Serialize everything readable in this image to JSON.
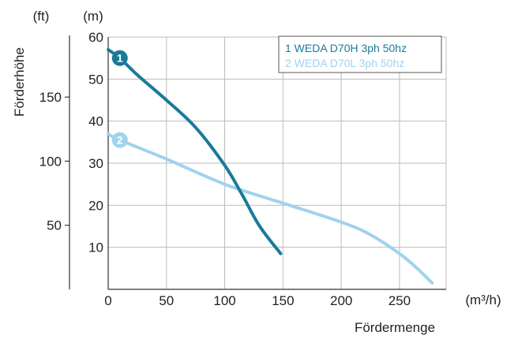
{
  "chart_data": {
    "type": "line",
    "title": "",
    "xlabel": "Fördermenge",
    "x_unit": "(m³/h)",
    "ylabel": "Förderhöhe",
    "y_unit_left": "(ft)",
    "y_unit_right": "(m)",
    "xlim": [
      0,
      290
    ],
    "ylim": [
      0,
      60
    ],
    "x_ticks": [
      "0",
      "50",
      "100",
      "150",
      "200",
      "250"
    ],
    "x_tick_values": [
      0,
      50,
      100,
      150,
      200,
      250
    ],
    "y_ticks": [
      "10",
      "20",
      "30",
      "40",
      "50",
      "60"
    ],
    "y_tick_values": [
      10,
      20,
      30,
      40,
      50,
      60
    ],
    "ft_ticks": [
      "50",
      "100",
      "150"
    ],
    "ft_tick_values": [
      50,
      100,
      150
    ],
    "grid": true,
    "legend_position": "top-right",
    "series": [
      {
        "name": "1 WEDA D70H 3ph 50hz",
        "marker_label": "1",
        "color": "#1a7a9a",
        "x": [
          0,
          10,
          25,
          50,
          75,
          100,
          115,
          130,
          148
        ],
        "y": [
          57,
          55,
          51,
          45,
          38.5,
          29.5,
          22.5,
          15,
          8.5
        ]
      },
      {
        "name": "2 WEDA D70L 3ph 50hz",
        "marker_label": "2",
        "color": "#9fd3ee",
        "x": [
          0,
          10,
          50,
          100,
          150,
          200,
          225,
          250,
          265,
          278
        ],
        "y": [
          37,
          35.5,
          31,
          25,
          20.5,
          16,
          13,
          8.5,
          5,
          1.5
        ]
      }
    ]
  }
}
